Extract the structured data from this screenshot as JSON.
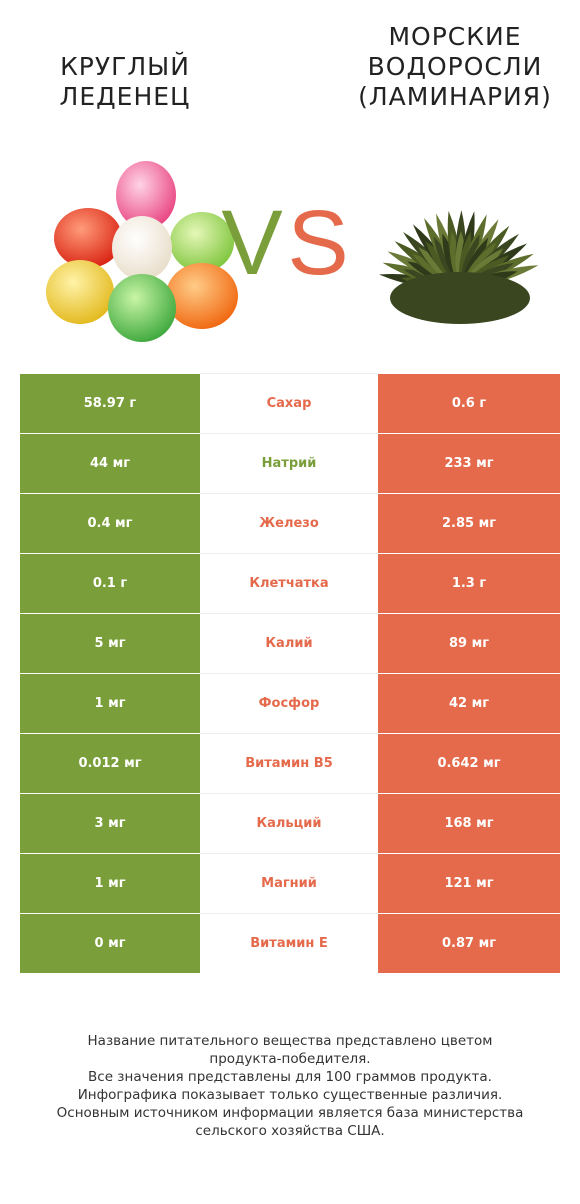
{
  "header": {
    "left_title": [
      "КРУГЛЫЙ",
      "ЛЕДЕНЕЦ"
    ],
    "right_title": [
      "МОРСКИЕ",
      "ВОДОРОСЛИ",
      "(ЛАМИНАРИЯ)"
    ],
    "vs_v": "V",
    "vs_s": "S"
  },
  "colors": {
    "left": "#7a9e3a",
    "right": "#e46a4b",
    "vs_v": "#7a9e3a",
    "vs_s": "#e46a4b"
  },
  "rows": [
    {
      "left": "58.97 г",
      "nutrient": "Сахар",
      "right": "0.6 г",
      "winner": "right"
    },
    {
      "left": "44 мг",
      "nutrient": "Натрий",
      "right": "233 мг",
      "winner": "left"
    },
    {
      "left": "0.4 мг",
      "nutrient": "Железо",
      "right": "2.85 мг",
      "winner": "right"
    },
    {
      "left": "0.1 г",
      "nutrient": "Клетчатка",
      "right": "1.3 г",
      "winner": "right"
    },
    {
      "left": "5 мг",
      "nutrient": "Калий",
      "right": "89 мг",
      "winner": "right"
    },
    {
      "left": "1 мг",
      "nutrient": "Фосфор",
      "right": "42 мг",
      "winner": "right"
    },
    {
      "left": "0.012 мг",
      "nutrient": "Витамин B5",
      "right": "0.642 мг",
      "winner": "right"
    },
    {
      "left": "3 мг",
      "nutrient": "Кальций",
      "right": "168 мг",
      "winner": "right"
    },
    {
      "left": "1 мг",
      "nutrient": "Магний",
      "right": "121 мг",
      "winner": "right"
    },
    {
      "left": "0 мг",
      "nutrient": "Витамин E",
      "right": "0.87 мг",
      "winner": "right"
    }
  ],
  "footnote": [
    "Название питательного вещества представлено цветом",
    "продукта-победителя.",
    "Все значения представлены для 100 граммов продукта.",
    "Инфографика показывает только существенные различия.",
    "Основным источником информации является база министерства",
    "сельского хозяйства США."
  ]
}
